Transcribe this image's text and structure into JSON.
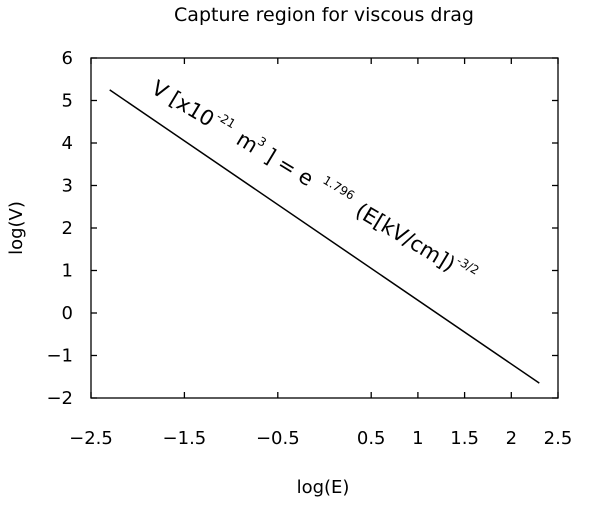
{
  "chart_data": {
    "type": "line",
    "title": "Capture region for viscous drag",
    "xlabel": "log(E)",
    "ylabel": "log(V)",
    "xlim": [
      -2.5,
      2.5
    ],
    "ylim": [
      -2,
      6
    ],
    "xticks": [
      {
        "value": -2.5,
        "label": "−2.5"
      },
      {
        "value": -1.5,
        "label": "−1.5"
      },
      {
        "value": -0.5,
        "label": "−0.5"
      },
      {
        "value": 0.5,
        "label": "0.5"
      },
      {
        "value": 1,
        "label": "1"
      },
      {
        "value": 1.5,
        "label": "1.5"
      },
      {
        "value": 2,
        "label": "2"
      },
      {
        "value": 2.5,
        "label": "2.5"
      }
    ],
    "yticks": [
      {
        "value": 6,
        "label": "6"
      },
      {
        "value": 5,
        "label": "5"
      },
      {
        "value": 4,
        "label": "4"
      },
      {
        "value": 3,
        "label": "3"
      },
      {
        "value": 2,
        "label": "2"
      },
      {
        "value": 1,
        "label": "1"
      },
      {
        "value": 0,
        "label": "0"
      },
      {
        "value": -1,
        "label": "−1"
      },
      {
        "value": -2,
        "label": "−2"
      }
    ],
    "series": [
      {
        "x": [
          -2.3,
          2.3
        ],
        "y": [
          5.25,
          -1.65
        ]
      }
    ],
    "grid": false,
    "annotation": {
      "a": "V [x10",
      "b": "-21",
      "c": "m",
      "d": "3",
      "e": "] = e",
      "f": "1.796",
      "g": "(E[kV/cm])",
      "h": "-3/2"
    }
  }
}
